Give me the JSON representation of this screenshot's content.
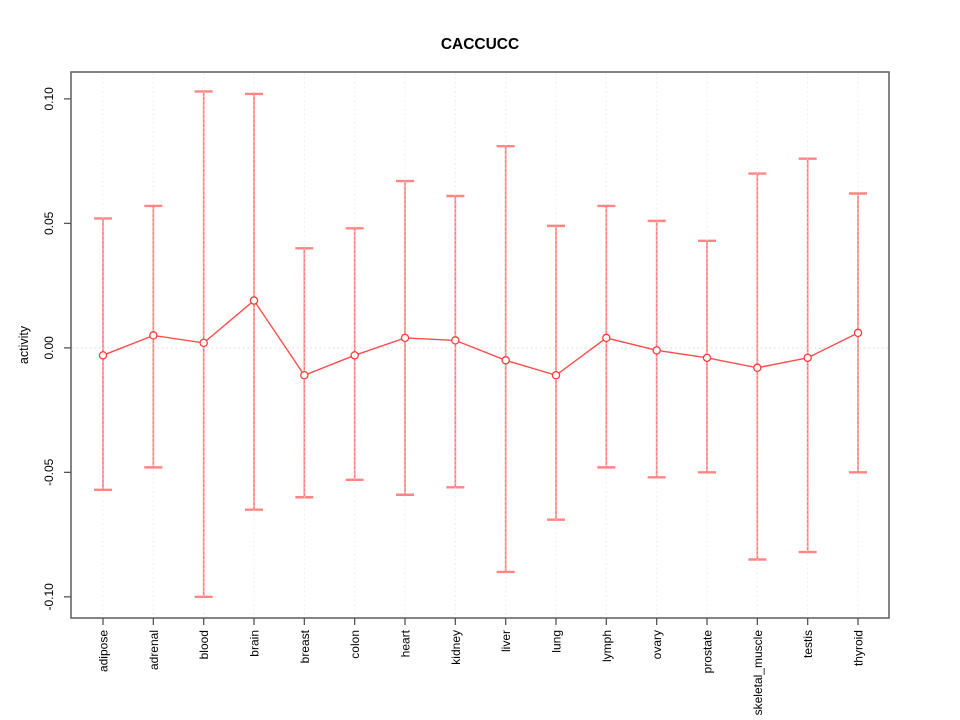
{
  "chart_data": {
    "type": "line",
    "subtype": "points-with-error-bars",
    "title": "CACCUCC",
    "xlabel": "",
    "ylabel": "activity",
    "legend": "none",
    "grid": "vertical dotted gridline at each category; dotted horizontal line at y=0",
    "categories": [
      "adipose",
      "adrenal",
      "blood",
      "brain",
      "breast",
      "colon",
      "heart",
      "kidney",
      "liver",
      "lung",
      "lymph",
      "ovary",
      "prostate",
      "skeletal_muscle",
      "testis",
      "thyroid"
    ],
    "series": [
      {
        "name": "activity",
        "marker": "open-circle",
        "values": [
          -0.003,
          0.005,
          0.002,
          0.019,
          -0.011,
          -0.003,
          0.004,
          0.003,
          -0.005,
          -0.011,
          0.004,
          -0.001,
          -0.004,
          -0.008,
          -0.004,
          0.006
        ],
        "upper": [
          0.052,
          0.057,
          0.103,
          0.102,
          0.04,
          0.048,
          0.067,
          0.061,
          0.081,
          0.049,
          0.057,
          0.051,
          0.043,
          0.07,
          0.076,
          0.062
        ],
        "lower": [
          -0.057,
          -0.048,
          -0.1,
          -0.065,
          -0.06,
          -0.053,
          -0.059,
          -0.056,
          -0.09,
          -0.069,
          -0.048,
          -0.052,
          -0.05,
          -0.085,
          -0.082,
          -0.05
        ]
      }
    ],
    "ytick_labels": [
      "0.10",
      "0.05",
      "0.00",
      "-0.05",
      "-0.10"
    ],
    "ytick_values": [
      0.1,
      0.05,
      0.0,
      -0.05,
      -0.1
    ],
    "ylim": [
      -0.1085,
      0.1108
    ],
    "colors": {
      "error_bar": "#ff7f7f",
      "error_cap": "#ff8585",
      "line": "#ff4d4d",
      "marker": "#ff3b3b",
      "marker_fill": "#ffffff",
      "gridline": "#dddddd",
      "zero_line": "#d9d9d9",
      "axis_box": "#666666",
      "tick": "#555555",
      "text": "#000000"
    }
  }
}
